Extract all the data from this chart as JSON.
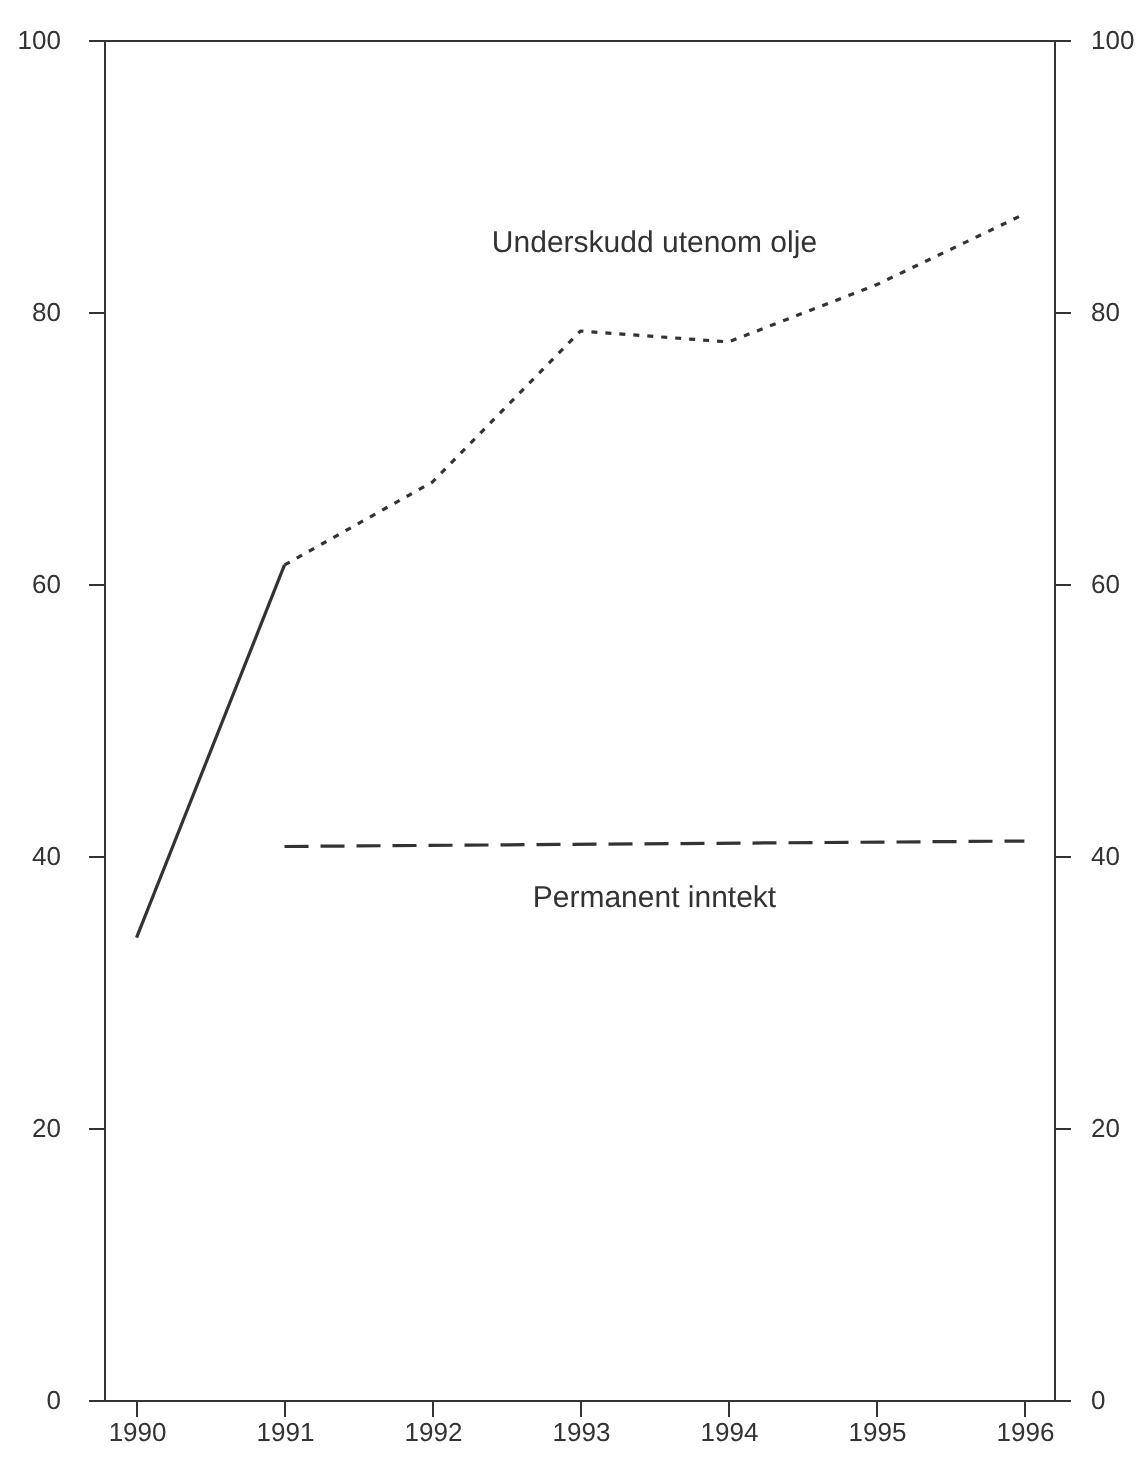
{
  "chart_data": {
    "type": "line",
    "xlim": [
      1989.78,
      1996.2
    ],
    "xticks": [
      1990,
      1991,
      1992,
      1993,
      1994,
      1995,
      1996
    ],
    "ylim": [
      0,
      100
    ],
    "yticks": [
      0,
      20,
      40,
      60,
      80,
      100
    ],
    "y2lim": [
      0,
      100
    ],
    "y2ticks": [
      0,
      20,
      40,
      60,
      80,
      100
    ],
    "grid": false,
    "marker": "none",
    "series": [
      {
        "color": "#333333",
        "line_style": "solid",
        "x": [
          1990,
          1991
        ],
        "values": [
          34,
          61.4
        ]
      },
      {
        "name": "Underskudd utenom olje",
        "color": "#333333",
        "line_style": "dotted",
        "x": [
          1991,
          1992,
          1993,
          1994,
          1995,
          1996
        ],
        "values": [
          61.4,
          67.5,
          78.6,
          77.8,
          82,
          87.2
        ]
      },
      {
        "name": "Permanent inntekt",
        "color": "#333333",
        "line_style": "dashed",
        "x": [
          1991,
          1996
        ],
        "values": [
          40.7,
          41.1
        ]
      }
    ]
  }
}
